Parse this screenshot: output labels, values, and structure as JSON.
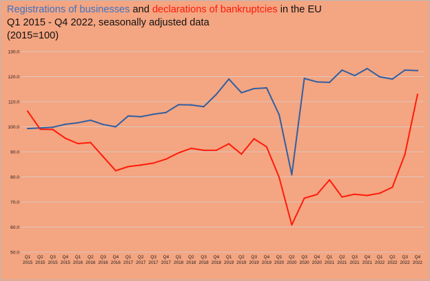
{
  "chart_data": {
    "type": "line",
    "title_parts": [
      {
        "text": "Registrations of businesses",
        "color": "#3d72c4"
      },
      {
        "text": " and ",
        "color": "#111111"
      },
      {
        "text": "declarations of bankruptcies",
        "color": "#ff1a0a"
      },
      {
        "text": " in the EU",
        "color": "#111111"
      }
    ],
    "subtitle_line1": "Q1 2015 - Q4 2022, seasonally adjusted data",
    "subtitle_line2": "(2015=100)",
    "ylim": [
      50.0,
      130.0
    ],
    "yticks": [
      "50.0",
      "60.0",
      "70.0",
      "80.0",
      "90.0",
      "100.0",
      "110.0",
      "120.0",
      "130.0"
    ],
    "grid": true,
    "legend": "none",
    "categories": [
      [
        "Q1",
        "2015"
      ],
      [
        "Q2",
        "2015"
      ],
      [
        "Q3",
        "2015"
      ],
      [
        "Q4",
        "2015"
      ],
      [
        "Q1",
        "2016"
      ],
      [
        "Q2",
        "2016"
      ],
      [
        "Q3",
        "2016"
      ],
      [
        "Q4",
        "2016"
      ],
      [
        "Q1",
        "2017"
      ],
      [
        "Q2",
        "2017"
      ],
      [
        "Q3",
        "2017"
      ],
      [
        "Q4",
        "2017"
      ],
      [
        "Q1",
        "2018"
      ],
      [
        "Q2",
        "2018"
      ],
      [
        "Q3",
        "2018"
      ],
      [
        "Q4",
        "2018"
      ],
      [
        "Q1",
        "2019"
      ],
      [
        "Q2",
        "2019"
      ],
      [
        "Q3",
        "2019"
      ],
      [
        "Q4",
        "2019"
      ],
      [
        "Q1",
        "2020"
      ],
      [
        "Q2",
        "2020"
      ],
      [
        "Q3",
        "2020"
      ],
      [
        "Q4",
        "2020"
      ],
      [
        "Q1",
        "2021"
      ],
      [
        "Q2",
        "2021"
      ],
      [
        "Q3",
        "2021"
      ],
      [
        "Q4",
        "2021"
      ],
      [
        "Q1",
        "2022"
      ],
      [
        "Q2",
        "2022"
      ],
      [
        "Q3",
        "2022"
      ],
      [
        "Q4",
        "2022"
      ]
    ],
    "series": [
      {
        "color": "#2e5fa3",
        "values": [
          99.3,
          99.5,
          99.8,
          101.0,
          101.6,
          102.6,
          100.9,
          100.0,
          104.3,
          104.0,
          105.0,
          105.7,
          108.8,
          108.7,
          108.0,
          112.9,
          119.0,
          113.6,
          115.2,
          115.5,
          104.8,
          80.9,
          119.3,
          117.9,
          117.7,
          122.6,
          120.4,
          123.2,
          119.9,
          119.0,
          122.6,
          122.4
        ]
      },
      {
        "color": "#ff1a0a",
        "values": [
          106.2,
          99.0,
          98.9,
          95.4,
          93.3,
          93.7,
          88.1,
          82.5,
          84.1,
          84.7,
          85.5,
          87.1,
          89.6,
          91.4,
          90.6,
          90.6,
          93.2,
          89.1,
          95.2,
          92.0,
          79.8,
          60.9,
          71.5,
          73.0,
          78.8,
          72.0,
          73.1,
          72.6,
          73.5,
          75.9,
          89.0,
          112.9
        ]
      }
    ]
  }
}
